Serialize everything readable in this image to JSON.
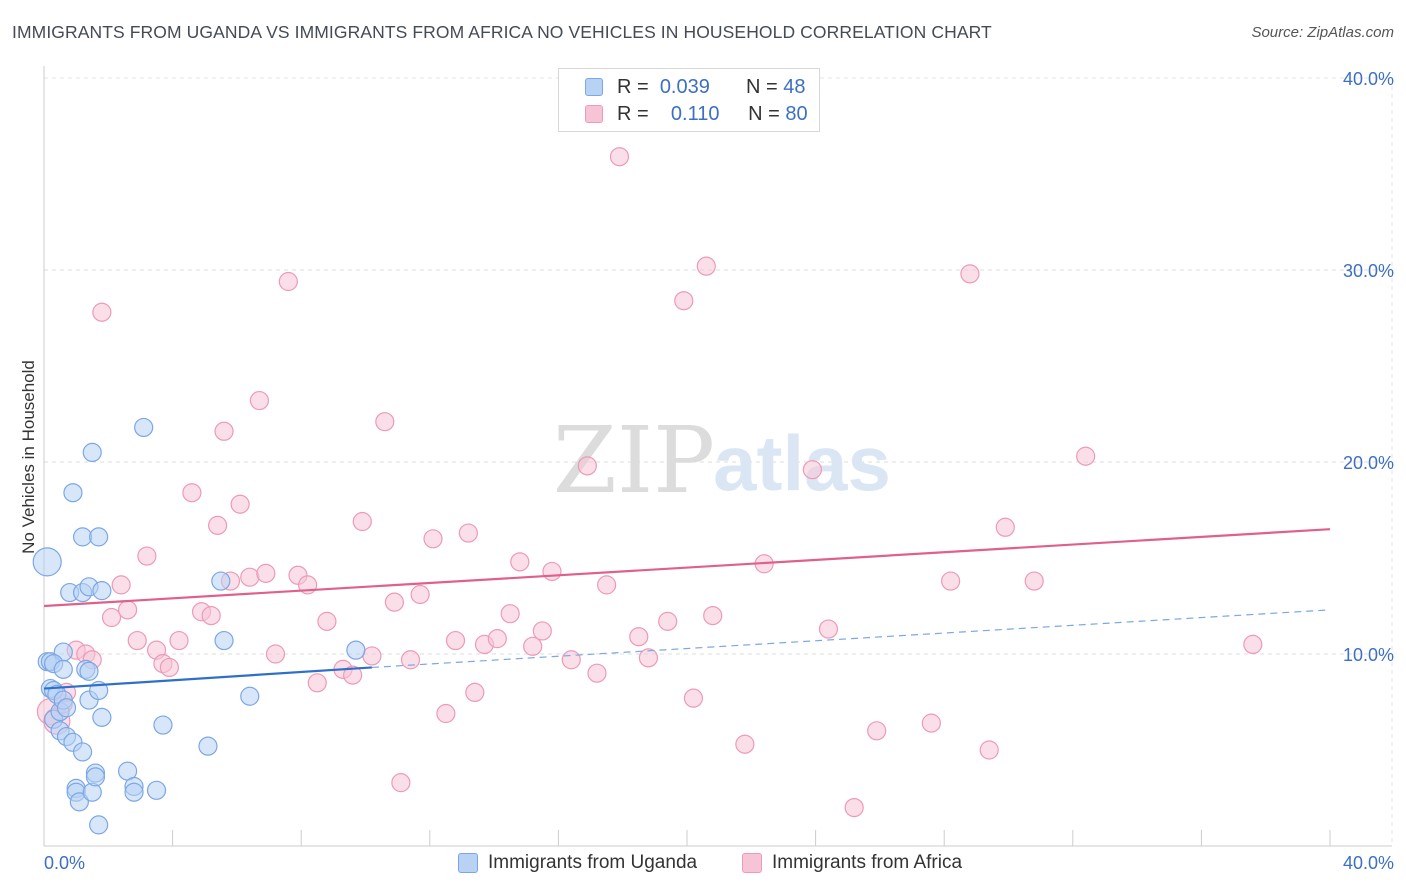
{
  "title": "IMMIGRANTS FROM UGANDA VS IMMIGRANTS FROM AFRICA NO VEHICLES IN HOUSEHOLD CORRELATION CHART",
  "source": "Source: ZipAtlas.com",
  "watermark": {
    "zip": "ZIP",
    "atlas": "atlas"
  },
  "legend": {
    "r_label": "R =",
    "n_label": "N =",
    "series": [
      {
        "name": "Immigrants from Uganda",
        "r": "0.039",
        "n": "48",
        "color": "#7ba7e6",
        "fill": "#b8d2f4",
        "line": "#2f6fcc"
      },
      {
        "name": "Immigrants from Africa",
        "r": "0.110",
        "n": "80",
        "color": "#ee9ab5",
        "fill": "#f7c4d5",
        "line": "#e0608c"
      }
    ]
  },
  "chart_data": {
    "type": "scatter",
    "title": "IMMIGRANTS FROM UGANDA VS IMMIGRANTS FROM AFRICA NO VEHICLES IN HOUSEHOLD CORRELATION CHART",
    "xlabel": "",
    "ylabel": "No Vehicles in Household",
    "xlim": [
      0,
      40
    ],
    "ylim": [
      0,
      40
    ],
    "x_tick_labels": [
      "0.0%",
      "40.0%"
    ],
    "y_tick_labels": [
      "10.0%",
      "20.0%",
      "30.0%",
      "40.0%"
    ],
    "y_ticks": [
      10,
      20,
      30,
      40
    ],
    "series": [
      {
        "name": "Immigrants from Uganda",
        "points": [
          [
            0.1,
            14.8
          ],
          [
            0.1,
            9.6
          ],
          [
            0.2,
            9.6
          ],
          [
            0.2,
            8.2
          ],
          [
            0.3,
            8.1
          ],
          [
            0.3,
            6.6
          ],
          [
            0.4,
            7.9
          ],
          [
            0.5,
            7.0
          ],
          [
            0.5,
            6.0
          ],
          [
            0.6,
            10.1
          ],
          [
            0.6,
            7.6
          ],
          [
            0.7,
            5.7
          ],
          [
            0.7,
            7.2
          ],
          [
            0.8,
            13.2
          ],
          [
            0.9,
            18.4
          ],
          [
            0.9,
            5.4
          ],
          [
            1.0,
            3.0
          ],
          [
            1.0,
            2.8
          ],
          [
            1.1,
            2.3
          ],
          [
            1.2,
            16.1
          ],
          [
            1.2,
            13.2
          ],
          [
            1.2,
            4.9
          ],
          [
            1.3,
            9.2
          ],
          [
            1.4,
            13.5
          ],
          [
            1.4,
            7.6
          ],
          [
            1.4,
            9.1
          ],
          [
            1.5,
            2.8
          ],
          [
            1.5,
            20.5
          ],
          [
            1.6,
            3.8
          ],
          [
            1.6,
            3.6
          ],
          [
            1.7,
            1.1
          ],
          [
            1.7,
            16.1
          ],
          [
            1.7,
            8.1
          ],
          [
            1.8,
            13.3
          ],
          [
            1.8,
            6.7
          ],
          [
            2.6,
            3.9
          ],
          [
            2.8,
            3.1
          ],
          [
            2.8,
            2.8
          ],
          [
            3.1,
            21.8
          ],
          [
            3.5,
            2.9
          ],
          [
            3.7,
            6.3
          ],
          [
            5.1,
            5.2
          ],
          [
            5.5,
            13.8
          ],
          [
            5.6,
            10.7
          ],
          [
            6.4,
            7.8
          ],
          [
            9.7,
            10.2
          ],
          [
            0.3,
            9.5
          ],
          [
            0.6,
            9.2
          ]
        ],
        "trend": {
          "x": [
            0,
            10.2
          ],
          "y": [
            8.2,
            9.3
          ]
        },
        "trend_extension": {
          "x": [
            10.2,
            40
          ],
          "y": [
            9.3,
            12.3
          ]
        }
      },
      {
        "name": "Immigrants from Africa",
        "points": [
          [
            0.2,
            7.0
          ],
          [
            0.4,
            6.5
          ],
          [
            0.6,
            7.4
          ],
          [
            0.7,
            8.0
          ],
          [
            1.0,
            10.2
          ],
          [
            1.3,
            10.0
          ],
          [
            1.5,
            9.7
          ],
          [
            1.8,
            27.8
          ],
          [
            2.1,
            11.9
          ],
          [
            2.4,
            13.6
          ],
          [
            2.6,
            12.3
          ],
          [
            2.9,
            10.7
          ],
          [
            3.2,
            15.1
          ],
          [
            3.5,
            10.2
          ],
          [
            3.7,
            9.5
          ],
          [
            3.9,
            9.3
          ],
          [
            4.2,
            10.7
          ],
          [
            4.6,
            18.4
          ],
          [
            4.9,
            12.2
          ],
          [
            5.2,
            12.0
          ],
          [
            5.4,
            16.7
          ],
          [
            5.6,
            21.6
          ],
          [
            5.8,
            13.8
          ],
          [
            6.1,
            17.8
          ],
          [
            6.4,
            14.0
          ],
          [
            6.7,
            23.2
          ],
          [
            6.9,
            14.2
          ],
          [
            7.2,
            10.0
          ],
          [
            7.6,
            29.4
          ],
          [
            7.9,
            14.1
          ],
          [
            8.2,
            13.6
          ],
          [
            8.5,
            8.5
          ],
          [
            8.8,
            11.7
          ],
          [
            9.3,
            9.2
          ],
          [
            9.6,
            8.9
          ],
          [
            9.9,
            16.9
          ],
          [
            10.2,
            9.9
          ],
          [
            10.6,
            22.1
          ],
          [
            10.9,
            12.7
          ],
          [
            11.1,
            3.3
          ],
          [
            11.4,
            9.7
          ],
          [
            11.7,
            13.1
          ],
          [
            12.1,
            16.0
          ],
          [
            12.5,
            6.9
          ],
          [
            12.8,
            10.7
          ],
          [
            13.2,
            16.3
          ],
          [
            13.4,
            8.0
          ],
          [
            13.7,
            10.5
          ],
          [
            14.1,
            10.8
          ],
          [
            14.5,
            12.1
          ],
          [
            14.8,
            14.8
          ],
          [
            15.2,
            10.4
          ],
          [
            15.5,
            11.2
          ],
          [
            15.8,
            14.3
          ],
          [
            16.4,
            9.7
          ],
          [
            16.9,
            19.8
          ],
          [
            17.2,
            9.0
          ],
          [
            17.5,
            13.6
          ],
          [
            17.9,
            35.9
          ],
          [
            18.5,
            10.9
          ],
          [
            18.8,
            9.8
          ],
          [
            19.4,
            11.7
          ],
          [
            19.9,
            28.4
          ],
          [
            20.2,
            7.7
          ],
          [
            20.6,
            30.2
          ],
          [
            20.8,
            12.0
          ],
          [
            21.8,
            5.3
          ],
          [
            22.4,
            14.7
          ],
          [
            23.9,
            19.6
          ],
          [
            24.4,
            11.3
          ],
          [
            25.2,
            2.0
          ],
          [
            25.9,
            6.0
          ],
          [
            27.6,
            6.4
          ],
          [
            28.2,
            13.8
          ],
          [
            28.8,
            29.8
          ],
          [
            29.4,
            5.0
          ],
          [
            29.9,
            16.6
          ],
          [
            30.8,
            13.8
          ],
          [
            32.4,
            20.3
          ],
          [
            37.6,
            10.5
          ]
        ],
        "trend": {
          "x": [
            0,
            40
          ],
          "y": [
            12.5,
            16.5
          ]
        }
      }
    ]
  }
}
